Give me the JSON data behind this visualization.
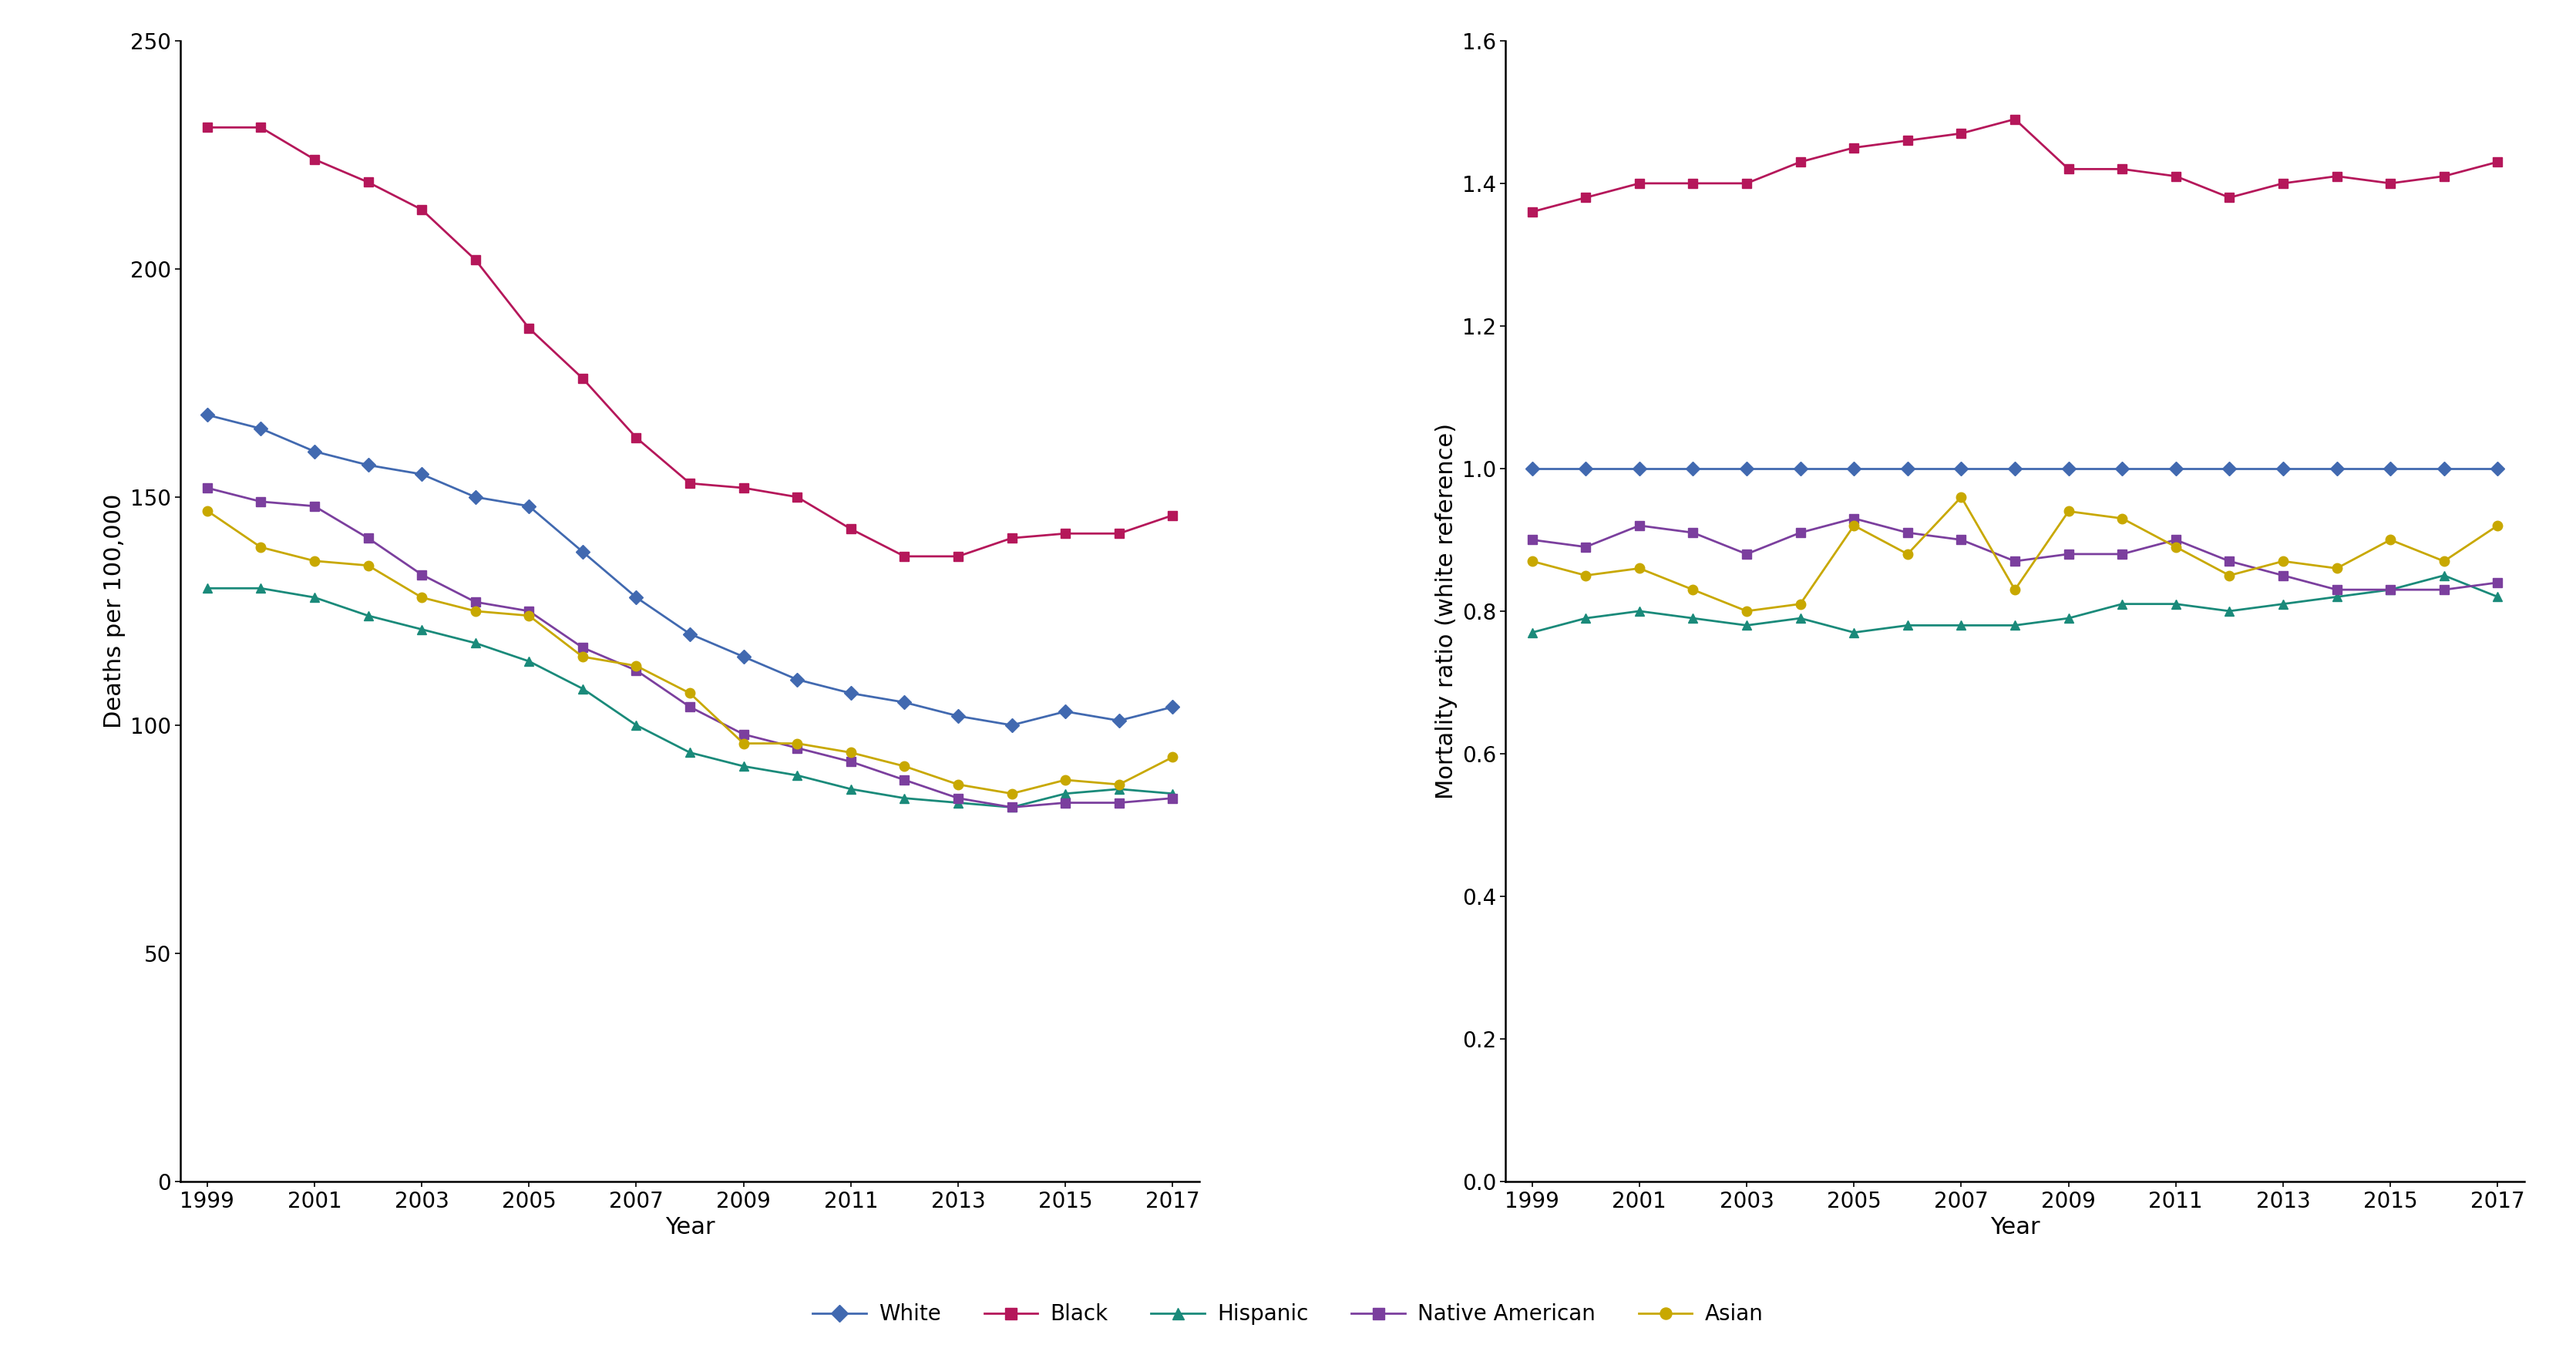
{
  "years": [
    1999,
    2000,
    2001,
    2002,
    2003,
    2004,
    2005,
    2006,
    2007,
    2008,
    2009,
    2010,
    2011,
    2012,
    2013,
    2014,
    2015,
    2016,
    2017
  ],
  "left_panel": {
    "white": [
      168,
      165,
      160,
      157,
      155,
      150,
      148,
      138,
      128,
      120,
      115,
      110,
      107,
      105,
      102,
      100,
      103,
      101,
      104
    ],
    "black": [
      231,
      231,
      224,
      219,
      213,
      202,
      187,
      176,
      163,
      153,
      152,
      150,
      143,
      137,
      137,
      141,
      142,
      142,
      146
    ],
    "hispanic": [
      130,
      130,
      128,
      124,
      121,
      118,
      114,
      108,
      100,
      94,
      91,
      89,
      86,
      84,
      83,
      82,
      85,
      86,
      85
    ],
    "native_american": [
      152,
      149,
      148,
      141,
      133,
      127,
      125,
      117,
      112,
      104,
      98,
      95,
      92,
      88,
      84,
      82,
      83,
      83,
      84
    ],
    "asian": [
      147,
      139,
      136,
      135,
      128,
      125,
      124,
      115,
      113,
      107,
      96,
      96,
      94,
      91,
      87,
      85,
      88,
      87,
      93
    ]
  },
  "right_panel": {
    "white": [
      1.0,
      1.0,
      1.0,
      1.0,
      1.0,
      1.0,
      1.0,
      1.0,
      1.0,
      1.0,
      1.0,
      1.0,
      1.0,
      1.0,
      1.0,
      1.0,
      1.0,
      1.0,
      1.0
    ],
    "black": [
      1.36,
      1.38,
      1.4,
      1.4,
      1.4,
      1.43,
      1.45,
      1.46,
      1.47,
      1.49,
      1.42,
      1.42,
      1.41,
      1.38,
      1.4,
      1.41,
      1.4,
      1.41,
      1.43
    ],
    "hispanic": [
      0.77,
      0.79,
      0.8,
      0.79,
      0.78,
      0.79,
      0.77,
      0.78,
      0.78,
      0.78,
      0.79,
      0.81,
      0.81,
      0.8,
      0.81,
      0.82,
      0.83,
      0.85,
      0.82
    ],
    "native_american": [
      0.9,
      0.89,
      0.92,
      0.91,
      0.88,
      0.91,
      0.93,
      0.91,
      0.9,
      0.87,
      0.88,
      0.88,
      0.9,
      0.87,
      0.85,
      0.83,
      0.83,
      0.83,
      0.84
    ],
    "asian": [
      0.87,
      0.85,
      0.86,
      0.83,
      0.8,
      0.81,
      0.92,
      0.88,
      0.96,
      0.83,
      0.94,
      0.93,
      0.89,
      0.85,
      0.87,
      0.86,
      0.9,
      0.87,
      0.92
    ]
  },
  "colors": {
    "white": "#4169B0",
    "black": "#B5175A",
    "hispanic": "#1A8A7A",
    "native_american": "#7B3F9E",
    "asian": "#C8A800"
  },
  "markers": {
    "white": "D",
    "black": "s",
    "hispanic": "^",
    "native_american": "s",
    "asian": "o"
  },
  "labels": {
    "white": "White",
    "black": "Black",
    "hispanic": "Hispanic",
    "native_american": "Native American",
    "asian": "Asian"
  },
  "series_order": [
    "white",
    "black",
    "hispanic",
    "native_american",
    "asian"
  ],
  "left_ylabel": "Deaths per 100,000",
  "right_ylabel": "Mortality ratio (white reference)",
  "xlabel": "Year",
  "left_ylim": [
    0,
    250
  ],
  "right_ylim": [
    0.0,
    1.6
  ],
  "left_yticks": [
    0,
    50,
    100,
    150,
    200,
    250
  ],
  "right_yticks": [
    0.0,
    0.2,
    0.4,
    0.6,
    0.8,
    1.0,
    1.2,
    1.4,
    1.6
  ]
}
